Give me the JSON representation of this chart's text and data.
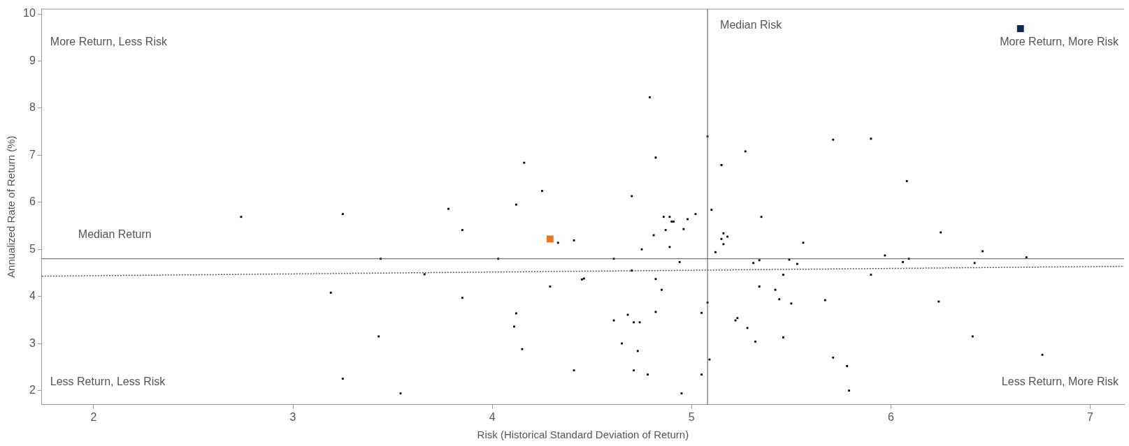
{
  "chart_data": {
    "type": "scatter",
    "xlabel": "Risk (Historical Standard Deviation of Return)",
    "ylabel": "Annualized Rate of Return (%)",
    "xlim": [
      1.74,
      7.17
    ],
    "xticks": [
      2,
      3,
      4,
      5,
      6,
      7
    ],
    "ylim": [
      1.7,
      10.11
    ],
    "yticks": [
      2,
      3,
      4,
      5,
      6,
      7,
      8,
      9,
      10
    ],
    "grid": false,
    "legend": false,
    "marker": "square",
    "annotations": [
      "More Return, Less Risk",
      "More Return, More Risk",
      "Less Return, Less Risk",
      "Less Return, More Risk"
    ],
    "ref_lines": [
      {
        "axis": "x",
        "value": 5.08,
        "label": "Median Risk",
        "color": "#555555"
      },
      {
        "axis": "y",
        "value": 4.8,
        "label": "Median Return",
        "color": "#555555"
      }
    ],
    "series": [
      {
        "color": "#000000",
        "x": [
          2.74,
          3.25,
          3.44,
          3.19,
          3.43,
          3.25,
          3.54,
          4.79,
          5.08,
          4.82,
          4.16,
          5.27,
          5.15,
          4.25,
          4.7,
          3.78,
          4.12,
          5.1,
          4.86,
          4.89,
          4.9,
          4.91,
          4.98,
          5.02,
          5.35,
          3.85,
          4.33,
          4.41,
          4.03,
          4.61,
          3.66,
          4.87,
          4.81,
          4.96,
          4.89,
          4.75,
          4.94,
          5.12,
          5.16,
          5.15,
          5.18,
          5.16,
          5.31,
          5.34,
          4.7,
          4.45,
          4.46,
          4.29,
          4.82,
          4.85,
          5.34,
          5.42,
          3.85,
          5.08,
          4.12,
          5.05,
          4.82,
          4.68,
          4.61,
          4.71,
          4.74,
          4.11,
          5.22,
          5.23,
          5.28,
          5.32,
          4.15,
          4.65,
          4.73,
          5.09,
          4.41,
          4.71,
          4.78,
          5.05,
          4.95,
          5.71,
          5.9,
          6.08,
          5.56,
          5.49,
          5.53,
          5.46,
          5.44,
          5.5,
          5.67,
          5.46,
          5.71,
          5.78,
          5.79,
          5.97,
          6.06,
          6.09,
          5.9,
          6.25,
          6.24,
          6.46,
          6.42,
          6.68,
          6.41,
          6.76
        ],
        "values": [
          5.69,
          5.75,
          4.8,
          4.08,
          3.15,
          2.25,
          1.94,
          8.23,
          7.4,
          6.95,
          6.84,
          7.08,
          6.79,
          6.24,
          6.13,
          5.86,
          5.95,
          5.84,
          5.69,
          5.69,
          5.59,
          5.59,
          5.64,
          5.75,
          5.69,
          5.41,
          5.14,
          5.19,
          4.8,
          4.8,
          4.47,
          5.41,
          5.3,
          5.43,
          5.05,
          5.0,
          4.73,
          4.94,
          5.34,
          5.22,
          5.27,
          5.11,
          4.71,
          4.77,
          4.55,
          4.36,
          4.38,
          4.21,
          4.37,
          4.14,
          4.21,
          4.14,
          3.97,
          3.87,
          3.64,
          3.65,
          3.67,
          3.61,
          3.49,
          3.45,
          3.45,
          3.36,
          3.49,
          3.54,
          3.33,
          3.04,
          2.88,
          3.0,
          2.84,
          2.66,
          2.43,
          2.43,
          2.34,
          2.34,
          1.94,
          7.33,
          7.35,
          6.45,
          5.14,
          4.78,
          4.69,
          4.46,
          3.94,
          3.85,
          3.92,
          3.13,
          2.7,
          2.52,
          2.0,
          4.87,
          4.73,
          4.8,
          4.46,
          5.36,
          3.89,
          4.96,
          4.71,
          4.83,
          3.15,
          2.76
        ]
      },
      {
        "color": "#e87722",
        "x": [
          4.29
        ],
        "values": [
          5.22
        ]
      },
      {
        "color": "#0b2a4f",
        "x": [
          6.65
        ],
        "values": [
          9.69
        ]
      },
      {
        "type": "line",
        "color": "#555555",
        "line_style": "dotted",
        "marker": "none",
        "x": [
          1.74,
          7.17
        ],
        "values": [
          4.43,
          4.64
        ]
      }
    ]
  }
}
